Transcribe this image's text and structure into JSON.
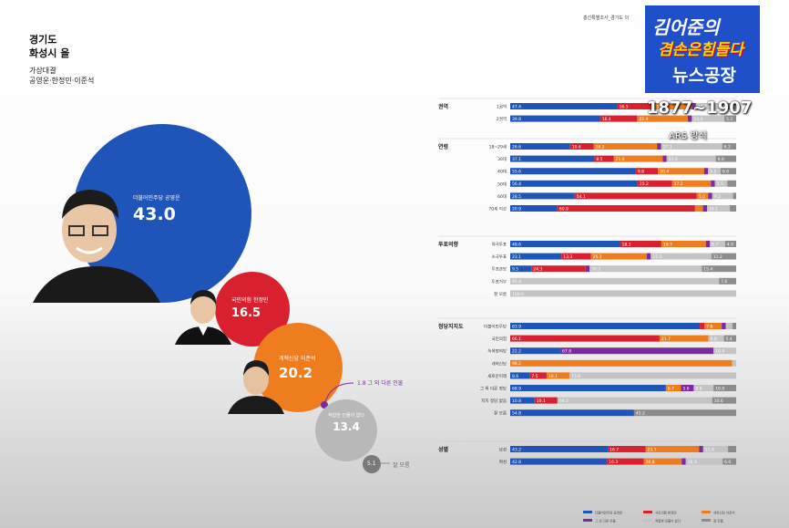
{
  "header": {
    "region": "경기도",
    "district": "화성시 을",
    "matchup_title": "가상대결",
    "matchup_names": "공영운·한정민·이준석",
    "survey_caption": "총선특별조사_경기도 의",
    "stamp_line1": "김어준의",
    "stamp_line2": "겸손은힘들다",
    "stamp_line3": "뉴스공장",
    "period": "1877~1907",
    "method": "ARS 방식"
  },
  "colors": {
    "dem": "#1f55b8",
    "ppp": "#d9202e",
    "reform": "#ee7d1f",
    "other": "#7d2a9e",
    "none": "#c4c4c4",
    "dk": "#8c8c8c"
  },
  "bubbles": [
    {
      "name": "더불어민주당 공영운",
      "value": "43.0",
      "key": "dem"
    },
    {
      "name": "국민의힘 한정민",
      "value": "16.5",
      "key": "ppp"
    },
    {
      "name": "개혁신당 이준석",
      "value": "20.2",
      "key": "reform"
    },
    {
      "name": "그 외 다른 인물",
      "value": "1.8",
      "key": "other"
    },
    {
      "name": "적합한 인물이 없다",
      "value": "13.4",
      "key": "none"
    },
    {
      "name": "잘 모름",
      "value": "5.1",
      "key": "dk"
    }
  ],
  "chart_data": {
    "type": "bar",
    "title": "경기도 화성시 을 가상대결",
    "series": [
      {
        "name": "더불어민주당 공영운",
        "key": "dem"
      },
      {
        "name": "국민의힘 한정민",
        "key": "ppp"
      },
      {
        "name": "개혁신당 이준석",
        "key": "reform"
      },
      {
        "name": "그 외 다른 인물",
        "key": "other"
      },
      {
        "name": "적합한 인물이 없다",
        "key": "none"
      },
      {
        "name": "잘 모름",
        "key": "dk"
      }
    ],
    "groups": [
      {
        "label": "권역",
        "rows": [
          {
            "label": "1권역",
            "values": [
              47.4,
              16.5,
              16.5,
              1.8,
              12.7,
              5.1
            ]
          },
          {
            "label": "2권역",
            "values": [
              39.8,
              16.4,
              22.4,
              1.8,
              14.4,
              5.2
            ]
          }
        ]
      },
      {
        "label": "연령",
        "rows": [
          {
            "label": "18~29세",
            "values": [
              26.6,
              10.4,
              28.2,
              1.8,
              27.1,
              6.2
            ]
          },
          {
            "label": "30대",
            "values": [
              37.1,
              8.5,
              21.6,
              1.8,
              21.6,
              9.0
            ]
          },
          {
            "label": "40대",
            "values": [
              55.6,
              9.8,
              20.4,
              1.8,
              5.5,
              6.9
            ]
          },
          {
            "label": "50대",
            "values": [
              56.4,
              15.2,
              17.2,
              1.8,
              5.5,
              3.9
            ]
          },
          {
            "label": "60대",
            "values": [
              28.5,
              54.1,
              5.0,
              1.8,
              9.2,
              1.4
            ]
          },
          {
            "label": "70세 이상",
            "values": [
              20.9,
              60.9,
              3.5,
              1.8,
              10.1,
              2.8
            ]
          }
        ]
      },
      {
        "label": "투표의향",
        "rows": [
          {
            "label": "적극투표",
            "values": [
              48.6,
              18.3,
              19.7,
              1.8,
              6.7,
              4.9
            ]
          },
          {
            "label": "소극투표",
            "values": [
              23.1,
              13.3,
              25.2,
              1.8,
              27.3,
              11.2
            ]
          },
          {
            "label": "투표관망",
            "values": [
              9.5,
              24.3,
              0,
              1.8,
              50.2,
              15.4
            ]
          },
          {
            "label": "투표거부",
            "values": [
              0,
              0,
              0,
              0,
              92.4,
              7.6
            ]
          },
          {
            "label": "잘 모름",
            "values": [
              0,
              0,
              0,
              0,
              100,
              0
            ]
          }
        ]
      },
      {
        "label": "정당지지도",
        "rows": [
          {
            "label": "더불어민주당",
            "values": [
              83.9,
              2.1,
              7.6,
              1.8,
              3.0,
              1.6
            ]
          },
          {
            "label": "국민의힘",
            "values": [
              0,
              66.1,
              21.7,
              0,
              6.8,
              5.4
            ]
          },
          {
            "label": "녹색정의당",
            "values": [
              22.2,
              0,
              0,
              67.8,
              10.0,
              0
            ]
          },
          {
            "label": "개혁신당",
            "values": [
              0,
              0,
              98.2,
              0,
              1.8,
              0
            ]
          },
          {
            "label": "새로운미래",
            "values": [
              8.6,
              7.5,
              10.1,
              0,
              73.8,
              0
            ]
          },
          {
            "label": "그 외 다른 정당",
            "values": [
              68.9,
              0,
              6.7,
              5.6,
              8.8,
              10.0
            ]
          },
          {
            "label": "지지 정당 없음",
            "values": [
              10.8,
              10.1,
              0,
              0,
              68.5,
              10.6
            ]
          },
          {
            "label": "잘 모름",
            "values": [
              54.8,
              0,
              0,
              0,
              0,
              45.2
            ]
          }
        ]
      },
      {
        "label": "성별",
        "rows": [
          {
            "label": "남성",
            "values": [
              43.2,
              16.7,
              23.7,
              1.8,
              11.0,
              3.6
            ]
          },
          {
            "label": "여성",
            "values": [
              42.8,
              16.3,
              16.8,
              1.8,
              16.3,
              6.0
            ]
          }
        ]
      }
    ]
  }
}
